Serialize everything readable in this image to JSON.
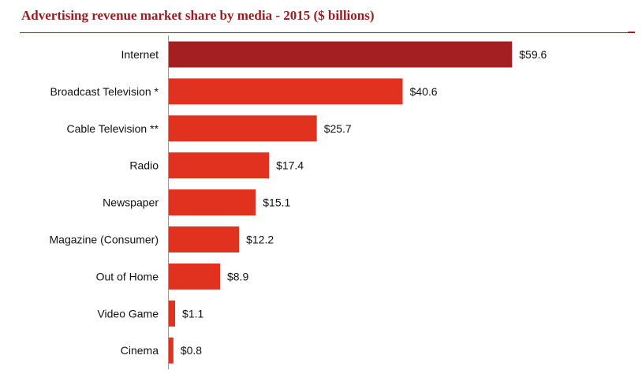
{
  "chart_data": {
    "type": "bar",
    "orientation": "horizontal",
    "title": "Advertising revenue market share by media - 2015 ($ billions)",
    "categories": [
      "Internet",
      "Broadcast Television *",
      "Cable Television **",
      "Radio",
      "Newspaper",
      "Magazine (Consumer)",
      "Out of Home",
      "Video Game",
      "Cinema"
    ],
    "values": [
      59.6,
      40.6,
      25.7,
      17.4,
      15.1,
      12.2,
      8.9,
      1.1,
      0.8
    ],
    "value_labels": [
      "$59.6",
      "$40.6",
      "$25.7",
      "$17.4",
      "$15.1",
      "$12.2",
      "$8.9",
      "$1.1",
      "$0.8"
    ],
    "xlim": [
      0,
      66
    ],
    "grid": false,
    "colors": {
      "highlight": "#a31f22",
      "bar": "#e1311f",
      "axis": "#999999",
      "title": "#9b1c20"
    }
  }
}
